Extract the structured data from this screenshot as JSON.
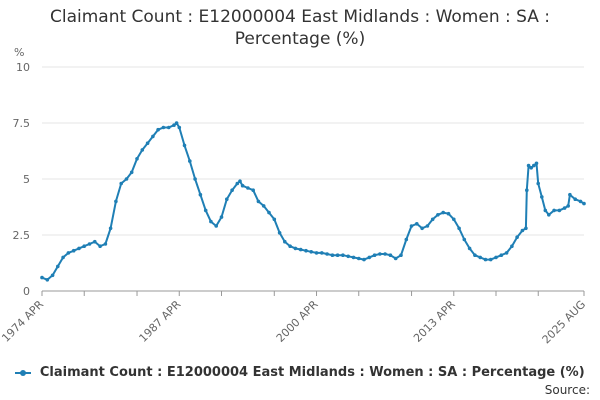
{
  "chart_data": {
    "type": "line",
    "title_line1": "Claimant Count : E12000004 East Midlands : Women : SA :",
    "title_line2": "Percentage (%)",
    "ylabel": "%",
    "ylim": [
      0,
      10
    ],
    "yticks": [
      0,
      2.5,
      5,
      7.5,
      10
    ],
    "ytick_labels": [
      "0",
      "2.5",
      "5",
      "7.5",
      "10"
    ],
    "xlim": [
      "1974-04",
      "2025-08"
    ],
    "xticks": [
      {
        "date": "1974-04",
        "label": "1974 APR"
      },
      {
        "date": "1987-04",
        "label": "1987 APR"
      },
      {
        "date": "2000-04",
        "label": "2000 APR"
      },
      {
        "date": "2013-04",
        "label": "2013 APR"
      },
      {
        "date": "2025-08",
        "label": "2025 AUG"
      }
    ],
    "grid": true,
    "legend_position": "bottom",
    "color": "#1f7fb5",
    "series": [
      {
        "name": "Claimant Count : E12000004 East Midlands : Women : SA : Percentage (%)",
        "points": [
          [
            "1974-04",
            0.6
          ],
          [
            "1974-10",
            0.5
          ],
          [
            "1975-04",
            0.7
          ],
          [
            "1975-10",
            1.1
          ],
          [
            "1976-04",
            1.5
          ],
          [
            "1976-10",
            1.7
          ],
          [
            "1977-04",
            1.8
          ],
          [
            "1977-10",
            1.9
          ],
          [
            "1978-04",
            2.0
          ],
          [
            "1978-10",
            2.1
          ],
          [
            "1979-04",
            2.2
          ],
          [
            "1979-10",
            2.0
          ],
          [
            "1980-04",
            2.1
          ],
          [
            "1980-10",
            2.8
          ],
          [
            "1981-04",
            4.0
          ],
          [
            "1981-10",
            4.8
          ],
          [
            "1982-04",
            5.0
          ],
          [
            "1982-10",
            5.3
          ],
          [
            "1983-04",
            5.9
          ],
          [
            "1983-10",
            6.3
          ],
          [
            "1984-04",
            6.6
          ],
          [
            "1984-10",
            6.9
          ],
          [
            "1985-04",
            7.2
          ],
          [
            "1985-10",
            7.3
          ],
          [
            "1986-04",
            7.3
          ],
          [
            "1986-10",
            7.4
          ],
          [
            "1987-01",
            7.5
          ],
          [
            "1987-04",
            7.3
          ],
          [
            "1987-10",
            6.5
          ],
          [
            "1988-04",
            5.8
          ],
          [
            "1988-10",
            5.0
          ],
          [
            "1989-04",
            4.3
          ],
          [
            "1989-10",
            3.6
          ],
          [
            "1990-04",
            3.1
          ],
          [
            "1990-10",
            2.9
          ],
          [
            "1991-04",
            3.3
          ],
          [
            "1991-10",
            4.1
          ],
          [
            "1992-04",
            4.5
          ],
          [
            "1992-10",
            4.8
          ],
          [
            "1993-01",
            4.9
          ],
          [
            "1993-04",
            4.7
          ],
          [
            "1993-10",
            4.6
          ],
          [
            "1994-04",
            4.5
          ],
          [
            "1994-10",
            4.0
          ],
          [
            "1995-04",
            3.8
          ],
          [
            "1995-10",
            3.5
          ],
          [
            "1996-04",
            3.2
          ],
          [
            "1996-10",
            2.6
          ],
          [
            "1997-04",
            2.2
          ],
          [
            "1997-10",
            2.0
          ],
          [
            "1998-04",
            1.9
          ],
          [
            "1998-10",
            1.85
          ],
          [
            "1999-04",
            1.8
          ],
          [
            "1999-10",
            1.75
          ],
          [
            "2000-04",
            1.7
          ],
          [
            "2000-10",
            1.7
          ],
          [
            "2001-04",
            1.65
          ],
          [
            "2001-10",
            1.6
          ],
          [
            "2002-04",
            1.6
          ],
          [
            "2002-10",
            1.6
          ],
          [
            "2003-04",
            1.55
          ],
          [
            "2003-10",
            1.5
          ],
          [
            "2004-04",
            1.45
          ],
          [
            "2004-10",
            1.4
          ],
          [
            "2005-04",
            1.5
          ],
          [
            "2005-10",
            1.6
          ],
          [
            "2006-04",
            1.65
          ],
          [
            "2006-10",
            1.65
          ],
          [
            "2007-04",
            1.6
          ],
          [
            "2007-10",
            1.45
          ],
          [
            "2008-04",
            1.6
          ],
          [
            "2008-10",
            2.3
          ],
          [
            "2009-04",
            2.9
          ],
          [
            "2009-10",
            3.0
          ],
          [
            "2010-04",
            2.8
          ],
          [
            "2010-10",
            2.9
          ],
          [
            "2011-04",
            3.2
          ],
          [
            "2011-10",
            3.4
          ],
          [
            "2012-04",
            3.5
          ],
          [
            "2012-10",
            3.45
          ],
          [
            "2013-04",
            3.2
          ],
          [
            "2013-10",
            2.8
          ],
          [
            "2014-04",
            2.3
          ],
          [
            "2014-10",
            1.9
          ],
          [
            "2015-04",
            1.6
          ],
          [
            "2015-10",
            1.5
          ],
          [
            "2016-04",
            1.4
          ],
          [
            "2016-10",
            1.4
          ],
          [
            "2017-04",
            1.5
          ],
          [
            "2017-10",
            1.6
          ],
          [
            "2018-04",
            1.7
          ],
          [
            "2018-10",
            2.0
          ],
          [
            "2019-04",
            2.4
          ],
          [
            "2019-10",
            2.7
          ],
          [
            "2020-02",
            2.8
          ],
          [
            "2020-03",
            4.5
          ],
          [
            "2020-05",
            5.6
          ],
          [
            "2020-08",
            5.5
          ],
          [
            "2020-11",
            5.6
          ],
          [
            "2021-02",
            5.7
          ],
          [
            "2021-04",
            4.8
          ],
          [
            "2021-08",
            4.2
          ],
          [
            "2021-12",
            3.6
          ],
          [
            "2022-04",
            3.4
          ],
          [
            "2022-10",
            3.6
          ],
          [
            "2023-04",
            3.6
          ],
          [
            "2023-10",
            3.7
          ],
          [
            "2024-02",
            3.8
          ],
          [
            "2024-04",
            4.3
          ],
          [
            "2024-10",
            4.1
          ],
          [
            "2025-04",
            4.0
          ],
          [
            "2025-08",
            3.9
          ]
        ]
      }
    ],
    "source_label": "Source:"
  }
}
